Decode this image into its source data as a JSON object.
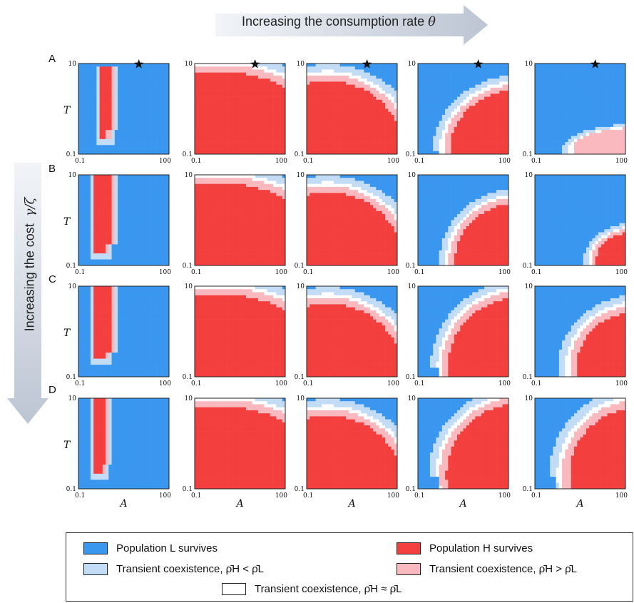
{
  "header": {
    "top_arrow_label_text": "Increasing the consumption rate",
    "top_arrow_label_symbol": "θ",
    "side_arrow_label_text": "Increasing the cost",
    "side_arrow_label_symbol": "γ/ζ"
  },
  "rows": [
    "A",
    "B",
    "C",
    "D"
  ],
  "legend": {
    "blue": "Population L survives",
    "red": "Population H survives",
    "light_blue": "Transient coexistence, ρ̄H < ρ̄L",
    "pink": "Transient coexistence, ρ̄H > ρ̄L",
    "white": "Transient coexistence,  ρ̄H ≈ ρ̄L"
  },
  "chart_data": {
    "type": "heatmap",
    "layout": "4 rows (cost increasing A→D) × 5 columns (consumption rate increasing left→right)",
    "xlabel": "A",
    "ylabel": "T",
    "x_scale": "log",
    "y_scale": "log",
    "xlim": [
      0.1,
      100
    ],
    "ylim": [
      0.1,
      10
    ],
    "x_ticks": [
      "0.1",
      "100"
    ],
    "y_ticks": [
      "0.1",
      "10"
    ],
    "colors": {
      "L_survives": "#3a97f0",
      "H_survives": "#f43f3f",
      "coexist_H_lt_L": "#c3dcf6",
      "coexist_H_gt_L": "#f9b9be",
      "coexist_equal": "#ffffff"
    },
    "star_marker": {
      "row": "A",
      "A": 10,
      "T": 10
    },
    "regions": [
      [
        {
          "shape": "band",
          "x": 0.22,
          "w": 0.22,
          "y0": 0.18,
          "y1": 0.97,
          "g": 0.035
        },
        {
          "shape": "fan",
          "cx": 0.27,
          "cy": 0.05,
          "rx": 1.5,
          "ry": 1.05,
          "g": 0.07
        },
        {
          "shape": "fan",
          "cx": 0.23,
          "cy": 0.05,
          "rx": 1.03,
          "ry": 0.94,
          "g": 0.075
        },
        {
          "shape": "fan",
          "cx": 1.12,
          "cy": 0.05,
          "rx": 0.95,
          "ry": 0.82,
          "g": 0.075
        },
        {
          "shape": "fan",
          "cx": 1.12,
          "cy": 0.05,
          "rx": 0.82,
          "ry": 0.28,
          "g": 0.09,
          "noH": true
        }
      ],
      [
        {
          "shape": "band",
          "x": 0.18,
          "w": 0.25,
          "y0": 0.14,
          "y1": 0.99,
          "g": 0.035
        },
        {
          "shape": "fan",
          "cx": 0.27,
          "cy": 0.05,
          "rx": 1.5,
          "ry": 1.05,
          "g": 0.07
        },
        {
          "shape": "fan",
          "cx": 0.23,
          "cy": 0.05,
          "rx": 1.03,
          "ry": 0.94,
          "g": 0.075
        },
        {
          "shape": "fan",
          "cx": 1.12,
          "cy": 0.05,
          "rx": 0.88,
          "ry": 0.8,
          "g": 0.075
        },
        {
          "shape": "fan",
          "cx": 1.12,
          "cy": 0.05,
          "rx": 0.58,
          "ry": 0.42,
          "g": 0.09
        }
      ],
      [
        {
          "shape": "band",
          "x": 0.17,
          "w": 0.28,
          "y0": 0.2,
          "y1": 0.99,
          "g": 0.035
        },
        {
          "shape": "fan",
          "cx": 0.27,
          "cy": 0.05,
          "rx": 1.5,
          "ry": 1.05,
          "g": 0.07
        },
        {
          "shape": "fan",
          "cx": 0.23,
          "cy": 0.05,
          "rx": 1.03,
          "ry": 0.94,
          "g": 0.075
        },
        {
          "shape": "fan",
          "cx": 1.12,
          "cy": 0.1,
          "rx": 0.98,
          "ry": 0.96,
          "g": 0.075
        },
        {
          "shape": "fan",
          "cx": 1.12,
          "cy": 0.1,
          "rx": 0.86,
          "ry": 0.8,
          "g": 0.09
        }
      ],
      [
        {
          "shape": "band",
          "x": 0.16,
          "w": 0.22,
          "y0": 0.18,
          "y1": 0.99,
          "g": 0.035
        },
        {
          "shape": "fan",
          "cx": 0.27,
          "cy": 0.05,
          "rx": 1.5,
          "ry": 1.05,
          "g": 0.07
        },
        {
          "shape": "fan",
          "cx": 0.23,
          "cy": 0.05,
          "rx": 1.03,
          "ry": 0.94,
          "g": 0.075
        },
        {
          "shape": "fan",
          "cx": 1.12,
          "cy": 0.15,
          "rx": 1.0,
          "ry": 0.98,
          "g": 0.075
        },
        {
          "shape": "fan",
          "cx": 1.12,
          "cy": 0.15,
          "rx": 0.96,
          "ry": 0.96,
          "g": 0.09
        }
      ]
    ]
  }
}
